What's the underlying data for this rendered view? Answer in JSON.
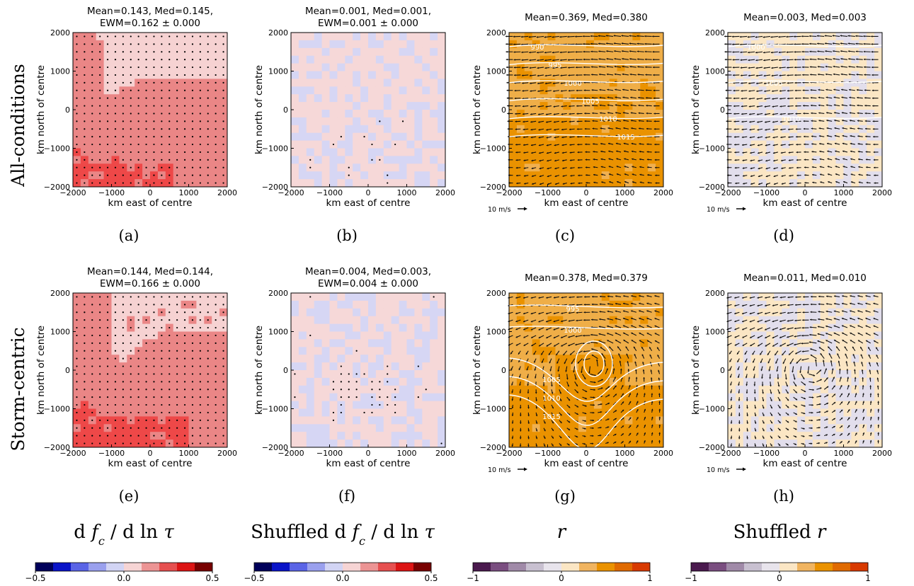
{
  "row_labels": [
    "All-conditions",
    "Storm-centric"
  ],
  "axis": {
    "xlabel": "km east of centre",
    "ylabel": "km north of centre",
    "ticks": [
      -2000,
      -1000,
      0,
      1000,
      2000
    ],
    "tick_labels": [
      "−2000",
      "−1000",
      "0",
      "1000",
      "2000"
    ],
    "wind_key": "10 m/s"
  },
  "column_titles": [
    {
      "parts": [
        {
          "t": "d ",
          "i": false
        },
        {
          "t": "f",
          "i": true
        },
        {
          "t": "c",
          "i": true,
          "sub": true
        },
        {
          "t": " / d ln ",
          "i": false
        },
        {
          "t": "τ",
          "i": true
        }
      ]
    },
    {
      "parts": [
        {
          "t": "Shuffled ",
          "i": false
        },
        {
          "t": "d ",
          "i": false
        },
        {
          "t": "f",
          "i": true
        },
        {
          "t": "c",
          "i": true,
          "sub": true
        },
        {
          "t": " / d ln ",
          "i": false
        },
        {
          "t": "τ",
          "i": true
        }
      ]
    },
    {
      "parts": [
        {
          "t": "r",
          "i": true
        }
      ]
    },
    {
      "parts": [
        {
          "t": "Shuffled ",
          "i": false
        },
        {
          "t": "r",
          "i": true
        }
      ]
    }
  ],
  "colorbars": [
    {
      "name": "dfc-colorbar",
      "labels": [
        "−0.5",
        "0.0",
        "0.5"
      ],
      "range": [
        -0.5,
        0.5
      ],
      "colors": [
        "#00005a",
        "#0a14c8",
        "#5a64e6",
        "#9aa0ee",
        "#d2d4f4",
        "#f6d4d4",
        "#ec9494",
        "#e65050",
        "#dc1414",
        "#780000"
      ]
    },
    {
      "name": "shuffled-dfc-colorbar",
      "labels": [
        "−0.5",
        "0.0",
        "0.5"
      ],
      "range": [
        -0.5,
        0.5
      ],
      "colors": [
        "#00005a",
        "#0a14c8",
        "#5a64e6",
        "#9aa0ee",
        "#d2d4f4",
        "#f6d4d4",
        "#ec9494",
        "#e65050",
        "#dc1414",
        "#780000"
      ]
    },
    {
      "name": "r-colorbar",
      "labels": [
        "−1",
        "0",
        "1"
      ],
      "range": [
        -1,
        1
      ],
      "colors": [
        "#4a1a4e",
        "#7a4e80",
        "#a08aa8",
        "#c8c0d0",
        "#e8e4ec",
        "#fbe6c4",
        "#f0b460",
        "#ea9200",
        "#e06a00",
        "#d83a00"
      ]
    },
    {
      "name": "shuffled-r-colorbar",
      "labels": [
        "−1",
        "0",
        "1"
      ],
      "range": [
        -1,
        1
      ],
      "colors": [
        "#4a1a4e",
        "#7a4e80",
        "#a08aa8",
        "#c8c0d0",
        "#e8e4ec",
        "#fbe6c4",
        "#f0b460",
        "#ea9200",
        "#e06a00",
        "#d83a00"
      ]
    }
  ],
  "chart_data": [
    {
      "type": "heatmap",
      "panel": "(a)",
      "title": "Mean=0.143, Med=0.145,\nEWM=0.162 ± 0.000",
      "xlabel": "km east of centre",
      "ylabel": "km north of centre",
      "xlim": [
        -2000,
        2000
      ],
      "ylim": [
        -2000,
        2000
      ],
      "mean": 0.143,
      "median": 0.145,
      "ewm": 0.162,
      "ewm_err": 0.0,
      "field": "dfc",
      "stippling": "dense",
      "contours": [],
      "winds": "none"
    },
    {
      "type": "heatmap",
      "panel": "(b)",
      "title": "Mean=0.001, Med=0.001,\nEWM=0.001 ± 0.000",
      "xlabel": "km east of centre",
      "ylabel": "km north of centre",
      "xlim": [
        -2000,
        2000
      ],
      "ylim": [
        -2000,
        2000
      ],
      "mean": 0.001,
      "median": 0.001,
      "ewm": 0.001,
      "ewm_err": 0.0,
      "field": "shuffled-dfc",
      "stippling": "sparse",
      "contours": [],
      "winds": "none"
    },
    {
      "type": "heatmap",
      "panel": "(c)",
      "title": "Mean=0.369, Med=0.380",
      "xlabel": "km east of centre",
      "ylabel": "km north of centre",
      "xlim": [
        -2000,
        2000
      ],
      "ylim": [
        -2000,
        2000
      ],
      "mean": 0.369,
      "median": 0.38,
      "field": "r",
      "stippling": "none",
      "contours": [
        "990",
        "995",
        "1000",
        "1005",
        "1010",
        "1015"
      ],
      "winds": "westerly"
    },
    {
      "type": "heatmap",
      "panel": "(d)",
      "title": "Mean=0.003, Med=0.003",
      "xlabel": "km east of centre",
      "ylabel": "km north of centre",
      "xlim": [
        -2000,
        2000
      ],
      "ylim": [
        -2000,
        2000
      ],
      "mean": 0.003,
      "median": 0.003,
      "field": "shuffled-r",
      "stippling": "none",
      "contours": [
        "1000",
        "1005",
        "1010"
      ],
      "winds": "westerly"
    },
    {
      "type": "heatmap",
      "panel": "(e)",
      "title": "Mean=0.144, Med=0.144,\nEWM=0.166 ± 0.000",
      "xlabel": "km east of centre",
      "ylabel": "km north of centre",
      "xlim": [
        -2000,
        2000
      ],
      "ylim": [
        -2000,
        2000
      ],
      "mean": 0.144,
      "median": 0.144,
      "ewm": 0.166,
      "ewm_err": 0.0,
      "field": "dfc-storm",
      "stippling": "dense",
      "contours": [],
      "winds": "none"
    },
    {
      "type": "heatmap",
      "panel": "(f)",
      "title": "Mean=0.004, Med=0.003,\nEWM=0.004 ± 0.000",
      "xlabel": "km east of centre",
      "ylabel": "km north of centre",
      "xlim": [
        -2000,
        2000
      ],
      "ylim": [
        -2000,
        2000
      ],
      "mean": 0.004,
      "median": 0.003,
      "ewm": 0.004,
      "ewm_err": 0.0,
      "field": "shuffled-dfc-storm",
      "stippling": "cluster",
      "contours": [],
      "winds": "none"
    },
    {
      "type": "heatmap",
      "panel": "(g)",
      "title": "Mean=0.378, Med=0.379",
      "xlabel": "km east of centre",
      "ylabel": "km north of centre",
      "xlim": [
        -2000,
        2000
      ],
      "ylim": [
        -2000,
        2000
      ],
      "mean": 0.378,
      "median": 0.379,
      "field": "r-storm",
      "stippling": "none",
      "contours": [
        "995",
        "1000",
        "1005",
        "1010",
        "1015"
      ],
      "winds": "cyclonic"
    },
    {
      "type": "heatmap",
      "panel": "(h)",
      "title": "Mean=0.011, Med=0.010",
      "xlabel": "km east of centre",
      "ylabel": "km north of centre",
      "xlim": [
        -2000,
        2000
      ],
      "ylim": [
        -2000,
        2000
      ],
      "mean": 0.011,
      "median": 0.01,
      "field": "shuffled-r-storm",
      "stippling": "none",
      "contours": [],
      "winds": "cyclonic"
    }
  ]
}
